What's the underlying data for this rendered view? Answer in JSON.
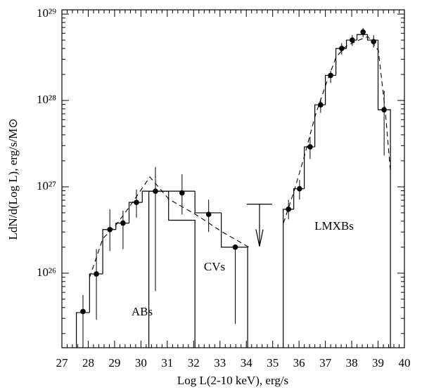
{
  "chart_data": {
    "type": "scatter",
    "x_label": "Log L(2-10 keV), erg/s",
    "y_label": "LdN/d(Log L), erg/s/M⊙",
    "xlim": [
      27,
      40
    ],
    "xticks": [
      27,
      28,
      29,
      30,
      31,
      32,
      33,
      34,
      35,
      36,
      37,
      38,
      39,
      40
    ],
    "ylog": true,
    "ylim": [
      1.37e+25,
      1.12e+29
    ],
    "yticks": [
      {
        "value": 1e+26,
        "label": "10²⁶"
      },
      {
        "value": 1e+27,
        "label": "10²⁷"
      },
      {
        "value": 1e+28,
        "label": "10²⁸"
      },
      {
        "value": 1e+29,
        "label": "10²⁹"
      }
    ],
    "color": "#000000",
    "points": {
      "x": [
        27.8,
        28.31,
        28.82,
        29.32,
        29.83,
        30.55,
        31.56,
        32.57,
        33.58,
        35.6,
        36.02,
        36.42,
        36.82,
        37.2,
        37.62,
        38.02,
        38.43,
        38.83,
        39.23
      ],
      "values": [
        3.6e+25,
        9.8e+25,
        3.2e+26,
        3.8e+26,
        6.6e+26,
        8.9e+26,
        8.5e+26,
        4.8e+26,
        2e+26,
        5.5e+26,
        9.5e+26,
        2.9e+27,
        8.9e+27,
        1.95e+28,
        4e+28,
        5e+28,
        6.2e+28,
        4.8e+28,
        7.8e+27
      ],
      "ylow": [
        1.45e+25,
        2.9e+25,
        1.8e+26,
        1.9e+26,
        4.4e+26,
        6.2e+25,
        4.8e+26,
        3e+26,
        2.6e+25,
        4.2e+26,
        7.1e+26,
        2.1e+27,
        7.2e+27,
        1.6e+28,
        3.4e+28,
        4.3e+28,
        5.4e+28,
        4.1e+28,
        2.3e+27
      ],
      "yhigh": [
        5.6e+25,
        1.9e+26,
        5.5e+26,
        5.3e+26,
        9.3e+26,
        1.7e+27,
        1.4e+27,
        7.1e+26,
        2.1e+26,
        7.1e+26,
        1.2e+27,
        3.8e+27,
        1.05e+28,
        2.2e+28,
        4.6e+28,
        5.7e+28,
        6.9e+28,
        5.7e+28,
        1.3e+28
      ]
    },
    "histograms": [
      {
        "edges": [
          27.55,
          28.05,
          28.55,
          29.05,
          29.55,
          30.05,
          31.05,
          32.05
        ],
        "values": [
          3.5e+25,
          9.8e+25,
          3.2e+26,
          3.8e+26,
          6.6e+26,
          8.9e+26,
          4.1e+26
        ]
      },
      {
        "edges": [
          30.3,
          32.05,
          33.05,
          34.05
        ],
        "values": [
          8.9e+26,
          5e+26,
          2e+26
        ]
      },
      {
        "edges": [
          35.4,
          35.8,
          36.2,
          36.6,
          37.0,
          37.4,
          37.8,
          38.2,
          38.6,
          39.0,
          39.47
        ],
        "values": [
          5.5e+26,
          9.5e+26,
          2.9e+27,
          8.9e+27,
          1.95e+28,
          4e+28,
          5e+28,
          5.8e+28,
          5e+28,
          7.8e+27
        ]
      }
    ],
    "model": {
      "line_style": "dashed",
      "x": [
        28.05,
        28.55,
        29.05,
        29.55,
        30.34,
        31.06,
        32.07,
        33.09,
        34.1,
        34.8,
        35.41,
        35.81,
        36.21,
        36.61,
        37.01,
        37.41,
        37.81,
        38.21,
        38.61,
        39.01,
        39.28,
        39.47
      ],
      "values": [
        8.9e+25,
        2.5e+26,
        3.6e+26,
        5.8e+26,
        1.3e+27,
        7.2e+26,
        4.8e+26,
        3e+26,
        2e+26,
        null,
        3.8e+26,
        8.9e+26,
        2.3e+27,
        6.6e+27,
        1.5e+28,
        3.2e+28,
        4.3e+28,
        4.9e+28,
        5.5e+28,
        3.8e+28,
        7.2e+27,
        1.5e+27
      ]
    },
    "upper_limit": {
      "x": 34.5,
      "value": 6.3e+26
    },
    "annotations": [
      {
        "text": "ABs"
      },
      {
        "text": "CVs"
      },
      {
        "text": "LMXBs"
      }
    ]
  }
}
